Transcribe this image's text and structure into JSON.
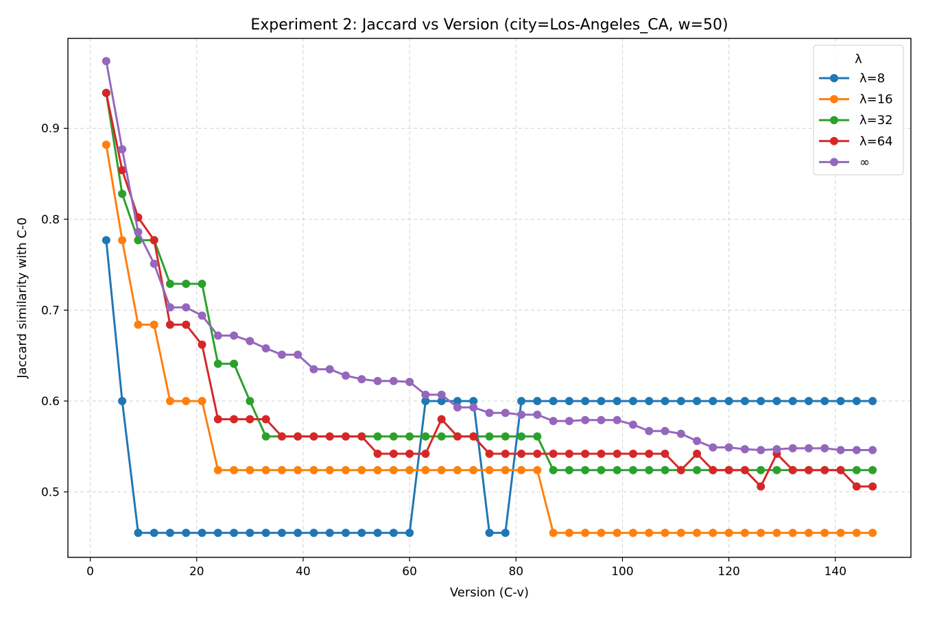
{
  "chart_data": {
    "type": "line",
    "title": "Experiment 2: Jaccard vs Version  (city=Los-Angeles_CA, w=50)",
    "xlabel": "Version (C-v)",
    "ylabel": "Jaccard similarity with C-0",
    "xlim": [
      -4.2,
      154.2
    ],
    "ylim": [
      0.428,
      0.999
    ],
    "xticks": [
      0,
      20,
      40,
      60,
      80,
      100,
      120,
      140
    ],
    "yticks": [
      0.5,
      0.6,
      0.7,
      0.8,
      0.9
    ],
    "xtick_labels": [
      "0",
      "20",
      "40",
      "60",
      "80",
      "100",
      "120",
      "140"
    ],
    "ytick_labels": [
      "0.5",
      "0.6",
      "0.7",
      "0.8",
      "0.9"
    ],
    "grid": true,
    "legend_title": "λ",
    "legend_position": "top-right",
    "x": [
      3,
      6,
      9,
      12,
      15,
      18,
      21,
      24,
      27,
      30,
      33,
      36,
      39,
      42,
      45,
      48,
      51,
      54,
      57,
      60,
      63,
      66,
      69,
      72,
      75,
      78,
      81,
      84,
      87,
      90,
      93,
      96,
      99,
      102,
      105,
      108,
      111,
      114,
      117,
      120,
      123,
      126,
      129,
      132,
      135,
      138,
      141,
      144,
      147
    ],
    "series": [
      {
        "name": "λ=8",
        "color": "#1f77b4",
        "values": [
          0.777,
          0.6,
          0.455,
          0.455,
          0.455,
          0.455,
          0.455,
          0.455,
          0.455,
          0.455,
          0.455,
          0.455,
          0.455,
          0.455,
          0.455,
          0.455,
          0.455,
          0.455,
          0.455,
          0.455,
          0.6,
          0.6,
          0.6,
          0.6,
          0.455,
          0.455,
          0.6,
          0.6,
          0.6,
          0.6,
          0.6,
          0.6,
          0.6,
          0.6,
          0.6,
          0.6,
          0.6,
          0.6,
          0.6,
          0.6,
          0.6,
          0.6,
          0.6,
          0.6,
          0.6,
          0.6,
          0.6,
          0.6,
          0.6
        ]
      },
      {
        "name": "λ=16",
        "color": "#ff7f0e",
        "values": [
          0.882,
          0.777,
          0.684,
          0.684,
          0.6,
          0.6,
          0.6,
          0.524,
          0.524,
          0.524,
          0.524,
          0.524,
          0.524,
          0.524,
          0.524,
          0.524,
          0.524,
          0.524,
          0.524,
          0.524,
          0.524,
          0.524,
          0.524,
          0.524,
          0.524,
          0.524,
          0.524,
          0.524,
          0.455,
          0.455,
          0.455,
          0.455,
          0.455,
          0.455,
          0.455,
          0.455,
          0.455,
          0.455,
          0.455,
          0.455,
          0.455,
          0.455,
          0.455,
          0.455,
          0.455,
          0.455,
          0.455,
          0.455,
          0.455
        ]
      },
      {
        "name": "λ=32",
        "color": "#2ca02c",
        "values": [
          0.939,
          0.828,
          0.777,
          0.777,
          0.729,
          0.729,
          0.729,
          0.641,
          0.641,
          0.6,
          0.561,
          0.561,
          0.561,
          0.561,
          0.561,
          0.561,
          0.561,
          0.561,
          0.561,
          0.561,
          0.561,
          0.561,
          0.561,
          0.561,
          0.561,
          0.561,
          0.561,
          0.561,
          0.524,
          0.524,
          0.524,
          0.524,
          0.524,
          0.524,
          0.524,
          0.524,
          0.524,
          0.524,
          0.524,
          0.524,
          0.524,
          0.524,
          0.524,
          0.524,
          0.524,
          0.524,
          0.524,
          0.524,
          0.524
        ]
      },
      {
        "name": "λ=64",
        "color": "#d62728",
        "values": [
          0.939,
          0.854,
          0.802,
          0.777,
          0.684,
          0.684,
          0.662,
          0.58,
          0.58,
          0.58,
          0.58,
          0.561,
          0.561,
          0.561,
          0.561,
          0.561,
          0.561,
          0.542,
          0.542,
          0.542,
          0.542,
          0.58,
          0.561,
          0.561,
          0.542,
          0.542,
          0.542,
          0.542,
          0.542,
          0.542,
          0.542,
          0.542,
          0.542,
          0.542,
          0.542,
          0.542,
          0.524,
          0.542,
          0.524,
          0.524,
          0.524,
          0.506,
          0.542,
          0.524,
          0.524,
          0.524,
          0.524,
          0.506,
          0.506
        ]
      },
      {
        "name": "∞",
        "color": "#9467bd",
        "values": [
          0.974,
          0.877,
          0.786,
          0.751,
          0.703,
          0.703,
          0.694,
          0.672,
          0.672,
          0.666,
          0.658,
          0.651,
          0.651,
          0.635,
          0.635,
          0.628,
          0.624,
          0.622,
          0.622,
          0.621,
          0.607,
          0.607,
          0.593,
          0.593,
          0.587,
          0.587,
          0.585,
          0.585,
          0.578,
          0.578,
          0.579,
          0.579,
          0.579,
          0.574,
          0.567,
          0.567,
          0.564,
          0.556,
          0.549,
          0.549,
          0.547,
          0.546,
          0.547,
          0.548,
          0.548,
          0.548,
          0.546,
          0.546,
          0.546
        ]
      }
    ]
  }
}
